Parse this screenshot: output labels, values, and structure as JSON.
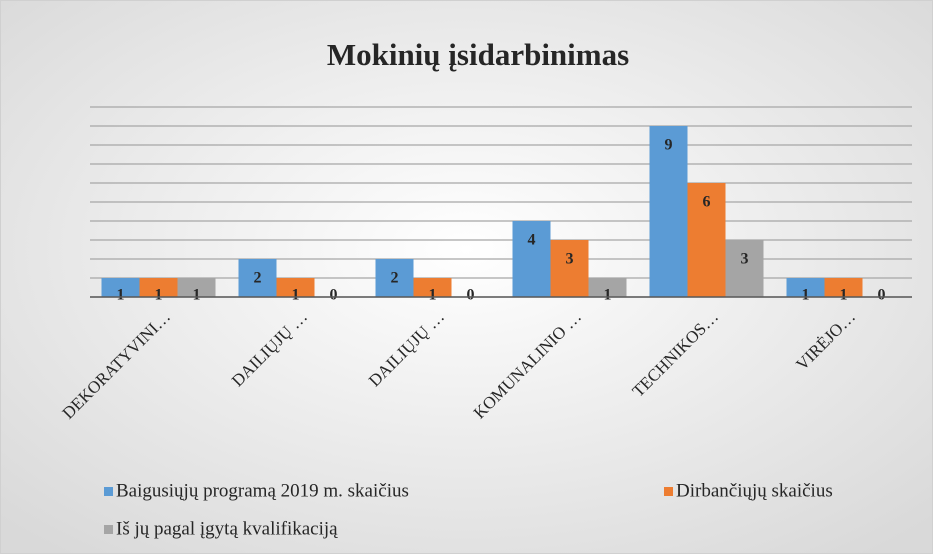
{
  "chart_data": {
    "type": "bar",
    "title": "Mokinių įsidarbinimas",
    "categories": [
      "DEKORATYVINI…",
      "DAILIŲJŲ …",
      "DAILIŲJŲ …",
      "KOMUNALINIO …",
      "TECHNIKOS…",
      "VIRĖJO…"
    ],
    "series": [
      {
        "name": "Baigusiųjų programą 2019 m. skaičius",
        "color": "#5b9bd5",
        "values": [
          1,
          2,
          2,
          4,
          9,
          1
        ]
      },
      {
        "name": "Dirbančiųjų skaičius",
        "color": "#ed7d31",
        "values": [
          1,
          1,
          1,
          3,
          6,
          1
        ]
      },
      {
        "name": "Iš jų pagal įgytą kvalifikaciją",
        "color": "#a5a5a5",
        "values": [
          1,
          0,
          0,
          1,
          3,
          0
        ]
      }
    ],
    "ylim": [
      0,
      10
    ],
    "yticks": [
      0,
      1,
      2,
      3,
      4,
      5,
      6,
      7,
      8,
      9,
      10
    ],
    "grid": true
  }
}
